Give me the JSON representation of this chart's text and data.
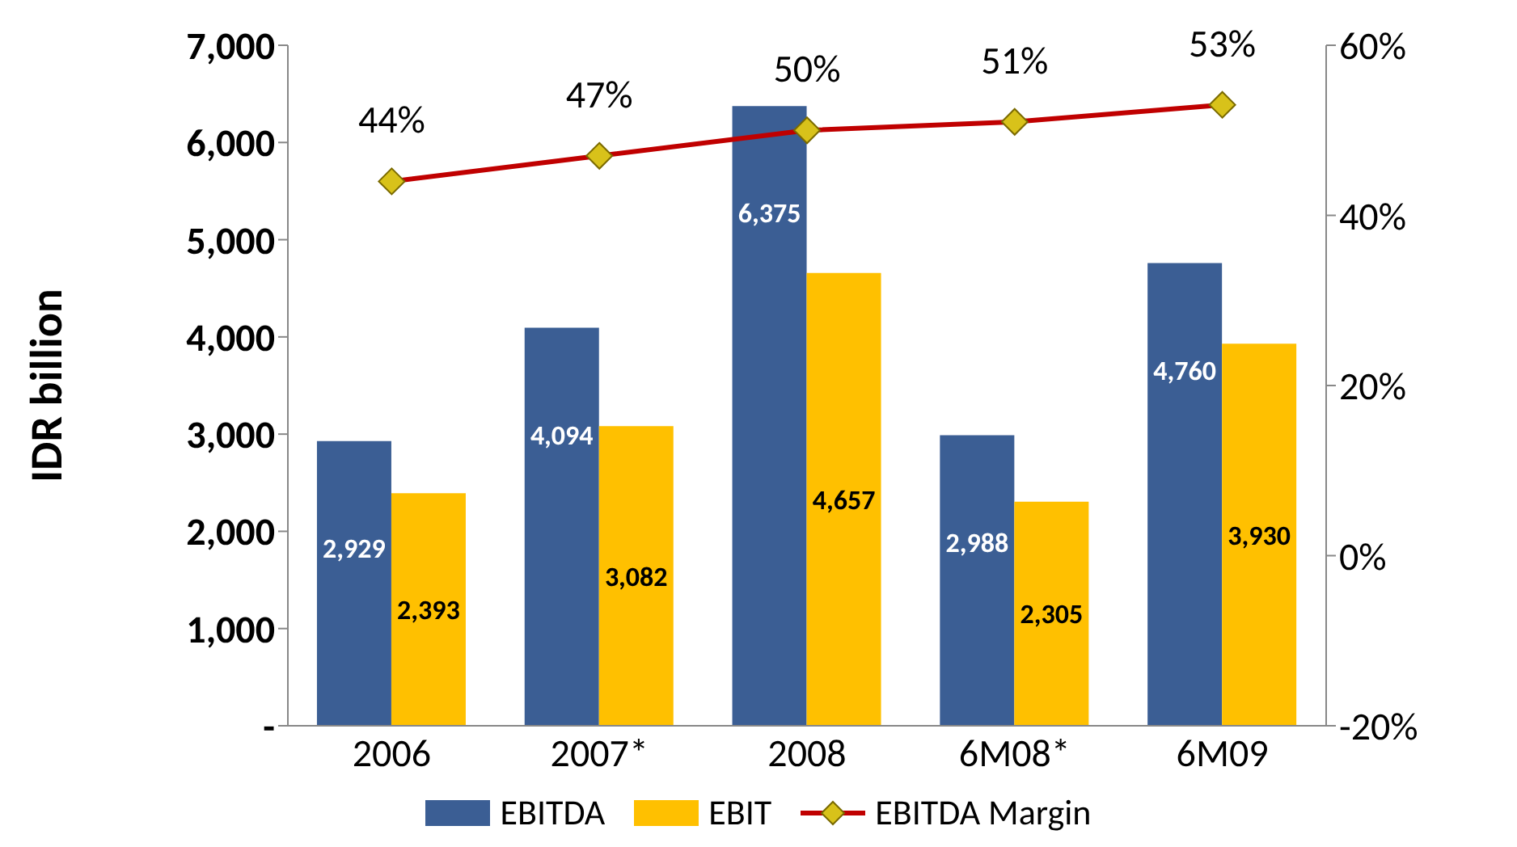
{
  "chart_data": {
    "type": "bar",
    "ylabel": "IDR billion",
    "categories": [
      "2006",
      "2007*",
      "2008",
      "6M08*",
      "6M09"
    ],
    "series": [
      {
        "name": "EBITDA",
        "color": "#3b5e94",
        "values": [
          2929,
          4094,
          6375,
          2988,
          4760
        ],
        "value_labels": [
          "2,929",
          "4,094",
          "6,375",
          "2,988",
          "4,760"
        ]
      },
      {
        "name": "EBIT",
        "color": "#ffc000",
        "values": [
          2393,
          3082,
          4657,
          2305,
          3930
        ],
        "value_labels": [
          "2,393",
          "3,082",
          "4,657",
          "2,305",
          "3,930"
        ]
      },
      {
        "name": "EBITDA Margin",
        "type": "line",
        "axis": "y2",
        "color": "#c00000",
        "values": [
          44,
          47,
          50,
          51,
          53
        ],
        "value_labels": [
          "44%",
          "47%",
          "50%",
          "51%",
          "53%"
        ]
      }
    ],
    "ylim": [
      0,
      7000
    ],
    "yticks": [
      {
        "value": 0,
        "label": "-"
      },
      {
        "value": 1000,
        "label": "1,000"
      },
      {
        "value": 2000,
        "label": "2,000"
      },
      {
        "value": 3000,
        "label": "3,000"
      },
      {
        "value": 4000,
        "label": "4,000"
      },
      {
        "value": 5000,
        "label": "5,000"
      },
      {
        "value": 6000,
        "label": "6,000"
      },
      {
        "value": 7000,
        "label": "7,000"
      }
    ],
    "y2lim": [
      -20,
      60
    ],
    "y2ticks": [
      {
        "value": -20,
        "label": "-20%"
      },
      {
        "value": 0,
        "label": "0%"
      },
      {
        "value": 20,
        "label": "20%"
      },
      {
        "value": 40,
        "label": "40%"
      },
      {
        "value": 60,
        "label": "60%"
      }
    ],
    "legend": "bottom",
    "marker": "diamond",
    "grid": false
  }
}
